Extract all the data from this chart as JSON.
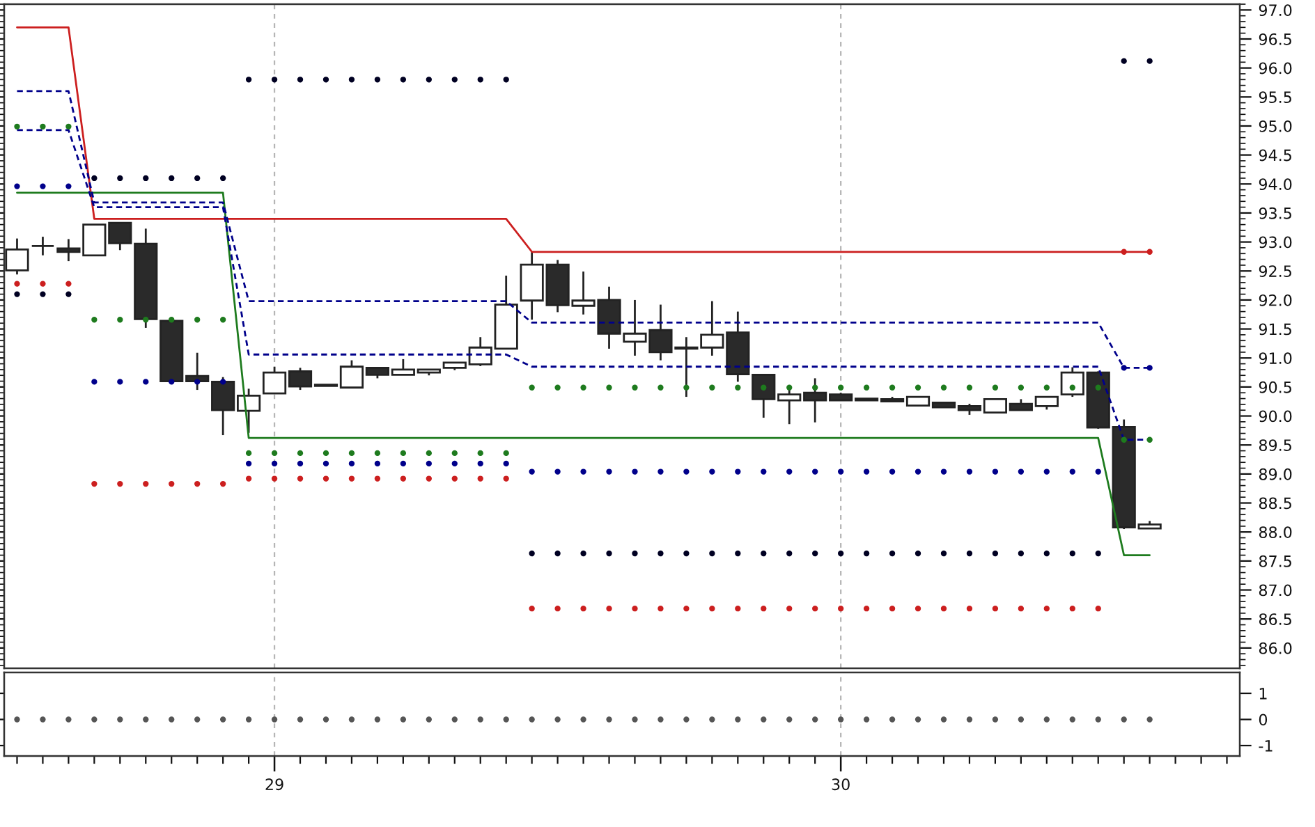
{
  "chart_data": [
    {
      "type": "candlestick",
      "categories": [
        null,
        null,
        null,
        null,
        null,
        null,
        null,
        null,
        null,
        null,
        "29",
        null,
        null,
        null,
        null,
        null,
        null,
        null,
        null,
        null,
        null,
        null,
        null,
        null,
        null,
        null,
        null,
        null,
        null,
        null,
        null,
        null,
        "30",
        null,
        null,
        null,
        null,
        null,
        null,
        null,
        null,
        null,
        null,
        null,
        null,
        null,
        null,
        null
      ],
      "ohlc": [
        [
          92.51,
          93.06,
          92.44,
          92.87
        ],
        [
          92.93,
          93.09,
          92.77,
          92.93
        ],
        [
          92.89,
          93.05,
          92.67,
          92.83
        ],
        [
          92.77,
          93.3,
          92.77,
          93.3
        ],
        [
          93.33,
          93.33,
          92.86,
          92.98
        ],
        [
          92.97,
          93.23,
          91.52,
          91.67
        ],
        [
          91.64,
          91.64,
          90.6,
          90.6
        ],
        [
          90.69,
          91.09,
          90.45,
          90.6
        ],
        [
          90.59,
          90.67,
          89.67,
          90.1
        ],
        [
          90.09,
          90.47,
          89.71,
          90.35
        ],
        [
          90.39,
          90.85,
          90.39,
          90.75
        ],
        [
          90.77,
          90.83,
          90.45,
          90.51
        ],
        [
          90.54,
          90.54,
          90.52,
          90.52
        ],
        [
          90.49,
          90.96,
          90.49,
          90.85
        ],
        [
          90.83,
          90.83,
          90.65,
          90.71
        ],
        [
          90.71,
          90.98,
          90.71,
          90.8
        ],
        [
          90.75,
          90.8,
          90.7,
          90.8
        ],
        [
          90.83,
          90.92,
          90.79,
          90.92
        ],
        [
          90.89,
          91.36,
          90.86,
          91.18
        ],
        [
          91.16,
          92.42,
          91.16,
          91.92
        ],
        [
          91.99,
          92.84,
          91.66,
          92.61
        ],
        [
          92.61,
          92.69,
          91.79,
          91.91
        ],
        [
          91.9,
          92.49,
          91.75,
          91.99
        ],
        [
          92.0,
          92.23,
          91.16,
          91.42
        ],
        [
          91.28,
          92.0,
          91.04,
          91.42
        ],
        [
          91.48,
          91.92,
          90.96,
          91.1
        ],
        [
          91.18,
          91.36,
          90.33,
          91.16
        ],
        [
          91.18,
          91.98,
          91.04,
          91.4
        ],
        [
          91.44,
          91.8,
          90.59,
          90.72
        ],
        [
          90.71,
          90.71,
          89.97,
          90.29
        ],
        [
          90.27,
          90.5,
          89.86,
          90.37
        ],
        [
          90.4,
          90.65,
          89.89,
          90.27
        ],
        [
          90.37,
          90.4,
          90.27,
          90.27
        ],
        [
          90.3,
          90.3,
          90.27,
          90.27
        ],
        [
          90.29,
          90.33,
          90.25,
          90.25
        ],
        [
          90.18,
          90.33,
          90.18,
          90.33
        ],
        [
          90.23,
          90.23,
          90.15,
          90.15
        ],
        [
          90.17,
          90.21,
          90.02,
          90.1
        ],
        [
          90.06,
          90.29,
          90.06,
          90.29
        ],
        [
          90.21,
          90.29,
          90.1,
          90.1
        ],
        [
          90.17,
          90.33,
          90.11,
          90.33
        ],
        [
          90.37,
          90.84,
          90.33,
          90.75
        ],
        [
          90.75,
          90.77,
          89.78,
          89.8
        ],
        [
          89.81,
          89.94,
          88.05,
          88.08
        ],
        [
          88.06,
          88.19,
          88.06,
          88.13
        ],
        null,
        null,
        null
      ],
      "series": [
        {
          "type": "line",
          "color": "#cc1f1f",
          "line_style": "solid",
          "values": [
            96.7,
            96.7,
            96.7,
            93.4,
            93.4,
            93.4,
            93.4,
            93.4,
            93.4,
            93.4,
            93.4,
            93.4,
            93.4,
            93.4,
            93.4,
            93.4,
            93.4,
            93.4,
            93.4,
            93.4,
            92.83,
            92.83,
            92.83,
            92.83,
            92.83,
            92.83,
            92.83,
            92.83,
            92.83,
            92.83,
            92.83,
            92.83,
            92.83,
            92.83,
            92.83,
            92.83,
            92.83,
            92.83,
            92.83,
            92.83,
            92.83,
            92.83,
            92.83,
            92.83,
            92.83,
            null,
            null,
            null
          ]
        },
        {
          "type": "line",
          "color": "#1e7b1e",
          "line_style": "solid",
          "values": [
            93.85,
            93.85,
            93.85,
            93.85,
            93.85,
            93.85,
            93.85,
            93.85,
            93.85,
            89.62,
            89.62,
            89.62,
            89.62,
            89.62,
            89.62,
            89.62,
            89.62,
            89.62,
            89.62,
            89.62,
            89.62,
            89.62,
            89.62,
            89.62,
            89.62,
            89.62,
            89.62,
            89.62,
            89.62,
            89.62,
            89.62,
            89.62,
            89.62,
            89.62,
            89.62,
            89.62,
            89.62,
            89.62,
            89.62,
            89.62,
            89.62,
            89.62,
            89.62,
            87.6,
            87.6,
            null,
            null,
            null
          ]
        },
        {
          "type": "line",
          "color": "#00008b",
          "line_style": "dashed",
          "values": [
            95.6,
            95.6,
            95.6,
            93.68,
            93.68,
            93.68,
            93.68,
            93.68,
            93.68,
            91.98,
            91.98,
            91.98,
            91.98,
            91.98,
            91.98,
            91.98,
            91.98,
            91.98,
            91.98,
            91.98,
            91.61,
            91.61,
            91.61,
            91.61,
            91.61,
            91.61,
            91.61,
            91.61,
            91.61,
            91.61,
            91.61,
            91.61,
            91.61,
            91.61,
            91.61,
            91.61,
            91.61,
            91.61,
            91.61,
            91.61,
            91.61,
            91.61,
            91.61,
            90.83,
            90.83,
            null,
            null,
            null
          ]
        },
        {
          "type": "line",
          "color": "#00008b",
          "line_style": "dashed",
          "values": [
            94.93,
            94.93,
            94.93,
            93.6,
            93.6,
            93.6,
            93.6,
            93.6,
            93.6,
            91.06,
            91.06,
            91.06,
            91.06,
            91.06,
            91.06,
            91.06,
            91.06,
            91.06,
            91.06,
            91.06,
            90.85,
            90.85,
            90.85,
            90.85,
            90.85,
            90.85,
            90.85,
            90.85,
            90.85,
            90.85,
            90.85,
            90.85,
            90.85,
            90.85,
            90.85,
            90.85,
            90.85,
            90.85,
            90.85,
            90.85,
            90.85,
            90.85,
            90.85,
            89.59,
            89.59,
            null,
            null,
            null
          ]
        },
        {
          "type": "scatter",
          "color": "#1e7b1e",
          "marker": "circle",
          "values": [
            94.99,
            94.99,
            94.99,
            91.66,
            91.66,
            91.66,
            91.66,
            91.66,
            91.66,
            89.36,
            89.36,
            89.36,
            89.36,
            89.36,
            89.36,
            89.36,
            89.36,
            89.36,
            89.36,
            89.36,
            90.49,
            90.49,
            90.49,
            90.49,
            90.49,
            90.49,
            90.49,
            90.49,
            90.49,
            90.49,
            90.49,
            90.49,
            90.49,
            90.49,
            90.49,
            90.49,
            90.49,
            90.49,
            90.49,
            90.49,
            90.49,
            90.49,
            90.49,
            89.59,
            89.59,
            null,
            null,
            null
          ]
        },
        {
          "type": "scatter",
          "color": "#00008b",
          "marker": "circle",
          "values": [
            93.96,
            93.96,
            93.96,
            90.59,
            90.59,
            90.59,
            90.59,
            90.59,
            90.59,
            89.18,
            89.18,
            89.18,
            89.18,
            89.18,
            89.18,
            89.18,
            89.18,
            89.18,
            89.18,
            89.18,
            89.04,
            89.04,
            89.04,
            89.04,
            89.04,
            89.04,
            89.04,
            89.04,
            89.04,
            89.04,
            89.04,
            89.04,
            89.04,
            89.04,
            89.04,
            89.04,
            89.04,
            89.04,
            89.04,
            89.04,
            89.04,
            89.04,
            89.04,
            90.83,
            90.83,
            null,
            null,
            null
          ]
        },
        {
          "type": "scatter",
          "color": "#cc1f1f",
          "marker": "circle",
          "values": [
            92.28,
            92.28,
            92.28,
            88.83,
            88.83,
            88.83,
            88.83,
            88.83,
            88.83,
            88.92,
            88.92,
            88.92,
            88.92,
            88.92,
            88.92,
            88.92,
            88.92,
            88.92,
            88.92,
            88.92,
            86.68,
            86.68,
            86.68,
            86.68,
            86.68,
            86.68,
            86.68,
            86.68,
            86.68,
            86.68,
            86.68,
            86.68,
            86.68,
            86.68,
            86.68,
            86.68,
            86.68,
            86.68,
            86.68,
            86.68,
            86.68,
            86.68,
            86.68,
            92.83,
            92.83,
            null,
            null,
            null
          ]
        },
        {
          "type": "scatter",
          "color": "#000022",
          "marker": "circle",
          "values": [
            92.1,
            92.1,
            92.1,
            94.1,
            94.1,
            94.1,
            94.1,
            94.1,
            94.1,
            95.8,
            95.8,
            95.8,
            95.8,
            95.8,
            95.8,
            95.8,
            95.8,
            95.8,
            95.8,
            95.8,
            87.63,
            87.63,
            87.63,
            87.63,
            87.63,
            87.63,
            87.63,
            87.63,
            87.63,
            87.63,
            87.63,
            87.63,
            87.63,
            87.63,
            87.63,
            87.63,
            87.63,
            87.63,
            87.63,
            87.63,
            87.63,
            87.63,
            87.63,
            96.12,
            96.12,
            null,
            null,
            null
          ]
        }
      ],
      "ylim": [
        85.65,
        97.1
      ],
      "yticks": [
        {
          "value": 86,
          "label": "86.0"
        },
        {
          "value": 86.5,
          "label": "86.5"
        },
        {
          "value": 87,
          "label": "87.0"
        },
        {
          "value": 87.5,
          "label": "87.5"
        },
        {
          "value": 88,
          "label": "88.0"
        },
        {
          "value": 88.5,
          "label": "88.5"
        },
        {
          "value": 89,
          "label": "89.0"
        },
        {
          "value": 89.5,
          "label": "89.5"
        },
        {
          "value": 90,
          "label": "90.0"
        },
        {
          "value": 90.5,
          "label": "90.5"
        },
        {
          "value": 91,
          "label": "91.0"
        },
        {
          "value": 91.5,
          "label": "91.5"
        },
        {
          "value": 92,
          "label": "92.0"
        },
        {
          "value": 92.5,
          "label": "92.5"
        },
        {
          "value": 93,
          "label": "93.0"
        },
        {
          "value": 93.5,
          "label": "93.5"
        },
        {
          "value": 94,
          "label": "94.0"
        },
        {
          "value": 94.5,
          "label": "94.5"
        },
        {
          "value": 95,
          "label": "95.0"
        },
        {
          "value": 95.5,
          "label": "95.5"
        },
        {
          "value": 96,
          "label": "96.0"
        },
        {
          "value": 96.5,
          "label": "96.5"
        },
        {
          "value": 97,
          "label": "97.0"
        }
      ],
      "grid": "x",
      "tick_labels": "y"
    },
    {
      "type": "scatter",
      "categories": [
        null,
        null,
        null,
        null,
        null,
        null,
        null,
        null,
        null,
        null,
        "29",
        null,
        null,
        null,
        null,
        null,
        null,
        null,
        null,
        null,
        null,
        null,
        null,
        null,
        null,
        null,
        null,
        null,
        null,
        null,
        null,
        null,
        "30",
        null,
        null,
        null,
        null,
        null,
        null,
        null,
        null,
        null,
        null,
        null,
        null,
        null,
        null,
        null
      ],
      "values": [
        0,
        0,
        0,
        0,
        0,
        0,
        0,
        0,
        0,
        0,
        0,
        0,
        0,
        0,
        0,
        0,
        0,
        0,
        0,
        0,
        0,
        0,
        0,
        0,
        0,
        0,
        0,
        0,
        0,
        0,
        0,
        0,
        0,
        0,
        0,
        0,
        0,
        0,
        0,
        0,
        0,
        0,
        0,
        0,
        0,
        null,
        null,
        null
      ],
      "color": "#555555",
      "marker": "circle",
      "ylim": [
        -1.4,
        1.8
      ],
      "yticks": [
        -1,
        0,
        1
      ],
      "grid": "x"
    }
  ]
}
